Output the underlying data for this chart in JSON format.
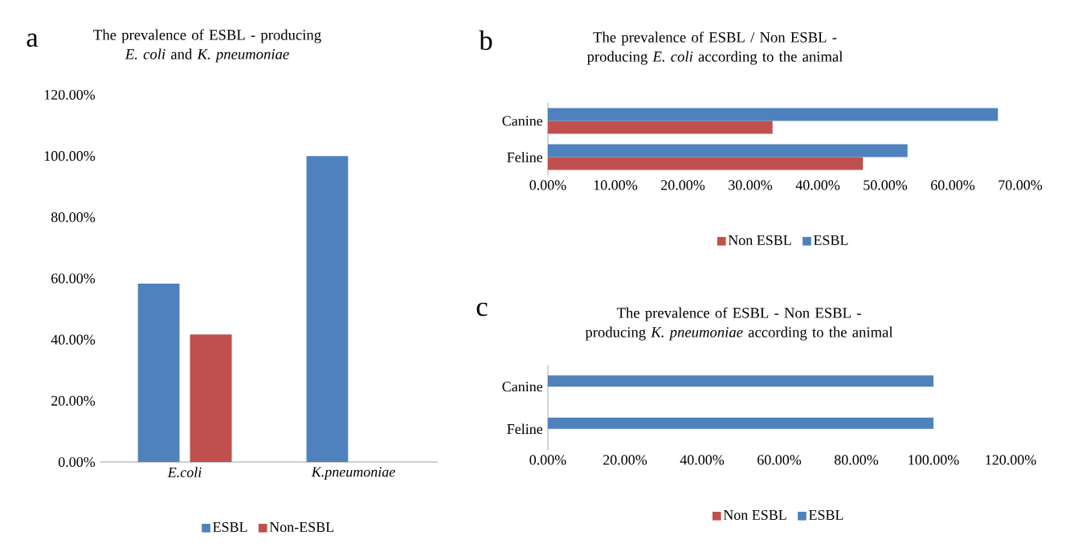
{
  "chart_data": [
    {
      "type": "bar",
      "title": "The prevalence of ESBL - producing *E. coli* and *K. pneumoniae*",
      "annotations": [
        "a"
      ],
      "categories": [
        "E.coli",
        "K.pneumoniae"
      ],
      "series": [
        {
          "name": "ESBL",
          "color": "#4f81bd",
          "values": [
            58.3,
            100
          ]
        },
        {
          "name": "Non-ESBL",
          "color": "#c0504d",
          "values": [
            41.7,
            0
          ]
        }
      ],
      "ylim": [
        0,
        120
      ],
      "yticks": [
        {
          "value": 0,
          "label": "0.00%"
        },
        {
          "value": 20,
          "label": "20.00%"
        },
        {
          "value": 40,
          "label": "40.00%"
        },
        {
          "value": 60,
          "label": "60.00%"
        },
        {
          "value": 80,
          "label": "80.00%"
        },
        {
          "value": 100,
          "label": "100.00%"
        },
        {
          "value": 120,
          "label": "120.00%"
        }
      ],
      "legend": "bottom"
    },
    {
      "type": "bar",
      "orientation": "horizontal",
      "title": "The prevalence of ESBL / Non ESBL - producing *E. coli* according to the animal",
      "annotations": [
        "b"
      ],
      "categories": [
        "Canine",
        "Feline"
      ],
      "series": [
        {
          "name": "Non ESBL",
          "color": "#c0504d",
          "values": [
            33.3,
            46.7
          ]
        },
        {
          "name": "ESBL",
          "color": "#4f81bd",
          "values": [
            66.7,
            53.3
          ]
        }
      ],
      "xlim": [
        0,
        70
      ],
      "xticks": [
        {
          "value": 0,
          "label": "0.00%"
        },
        {
          "value": 10,
          "label": "10.00%"
        },
        {
          "value": 20,
          "label": "20.00%"
        },
        {
          "value": 30,
          "label": "30.00%"
        },
        {
          "value": 40,
          "label": "40.00%"
        },
        {
          "value": 50,
          "label": "50.00%"
        },
        {
          "value": 60,
          "label": "60.00%"
        },
        {
          "value": 70,
          "label": "70.00%"
        }
      ],
      "legend": "bottom"
    },
    {
      "type": "bar",
      "orientation": "horizontal",
      "title": "The prevalence of ESBL - Non ESBL - producing  *K. pneumoniae* according to the animal",
      "annotations": [
        "c"
      ],
      "categories": [
        "Canine",
        "Feline"
      ],
      "series": [
        {
          "name": "Non ESBL",
          "color": "#c0504d",
          "values": [
            0,
            0
          ]
        },
        {
          "name": "ESBL",
          "color": "#4f81bd",
          "values": [
            100,
            100
          ]
        }
      ],
      "xlim": [
        0,
        120
      ],
      "xticks": [
        {
          "value": 0,
          "label": "0.00%"
        },
        {
          "value": 20,
          "label": "20.00%"
        },
        {
          "value": 40,
          "label": "40.00%"
        },
        {
          "value": 60,
          "label": "60.00%"
        },
        {
          "value": 80,
          "label": "80.00%"
        },
        {
          "value": 100,
          "label": "100.00%"
        },
        {
          "value": 120,
          "label": "120.00%"
        }
      ],
      "legend": "bottom"
    }
  ]
}
